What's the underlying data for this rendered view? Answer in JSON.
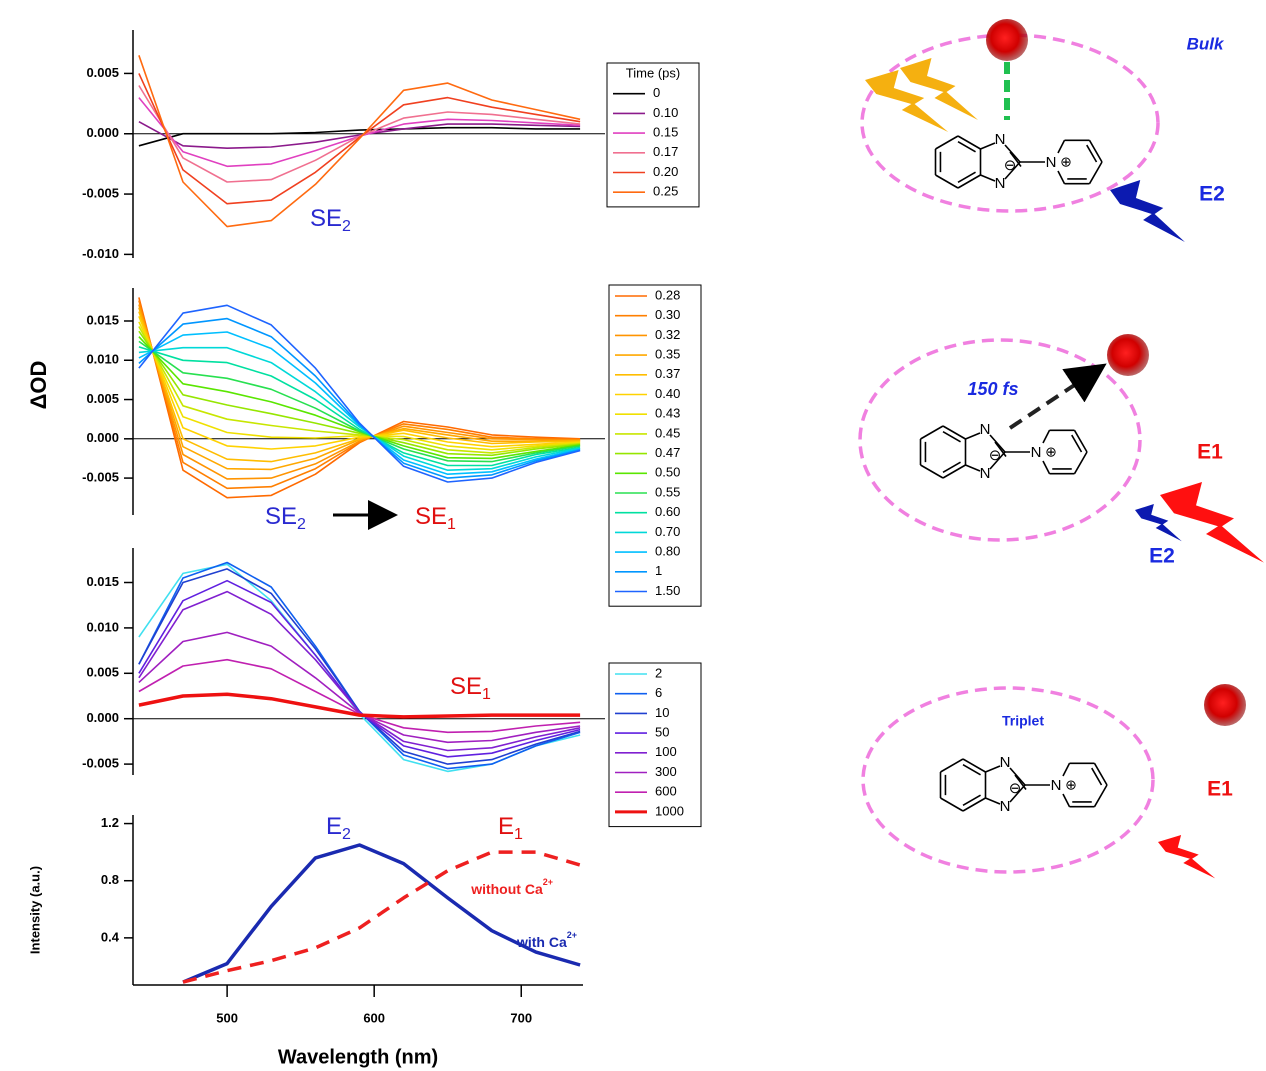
{
  "chart_data": [
    {
      "type": "line",
      "xlim": [
        436,
        742
      ],
      "ylim": [
        -0.0103,
        0.0086
      ],
      "yticks": [
        0.005,
        {
          "value": 0,
          "label": "0.000"
        },
        -0.005,
        {
          "value": -0.01,
          "label": "-0.010"
        }
      ],
      "zero_line": true,
      "legend": true,
      "legend_title": "Time (ps)",
      "x": [
        440,
        470,
        500,
        530,
        560,
        590,
        620,
        650,
        680,
        710,
        740
      ],
      "series": [
        {
          "name": "0",
          "color": "#000000",
          "values": [
            -0.001,
            0,
            0,
            0,
            0.0001,
            0.0003,
            0.0004,
            0.0005,
            0.0005,
            0.0004,
            0.0004
          ]
        },
        {
          "name": "0.10",
          "color": "#8b1a8b",
          "values": [
            0.001,
            -0.001,
            -0.0012,
            -0.0011,
            -0.0007,
            -0.0001,
            0.0004,
            0.0008,
            0.0008,
            0.0007,
            0.0006
          ]
        },
        {
          "name": "0.15",
          "color": "#e040c0",
          "values": [
            0.003,
            -0.0015,
            -0.0027,
            -0.0025,
            -0.0014,
            -0.0002,
            0.0008,
            0.0012,
            0.0011,
            0.0009,
            0.0007
          ]
        },
        {
          "name": "0.17",
          "color": "#f07090",
          "values": [
            0.004,
            -0.002,
            -0.004,
            -0.0038,
            -0.0022,
            -0.0002,
            0.0013,
            0.0018,
            0.0016,
            0.0012,
            0.0008
          ]
        },
        {
          "name": "0.20",
          "color": "#f04020",
          "values": [
            0.005,
            -0.003,
            -0.0058,
            -0.0055,
            -0.0032,
            -0.0003,
            0.0024,
            0.003,
            0.0022,
            0.0016,
            0.001
          ]
        },
        {
          "name": "0.25",
          "color": "#ff6a10",
          "values": [
            0.0065,
            -0.004,
            -0.0077,
            -0.0072,
            -0.0042,
            -0.0004,
            0.0036,
            0.0042,
            0.0028,
            0.002,
            0.0012
          ]
        }
      ],
      "annotations": [
        {
          "text": "SE",
          "sub": "2",
          "color": "#2a2ad0"
        }
      ]
    },
    {
      "type": "line",
      "xlim": [
        436,
        742
      ],
      "ylim": [
        -0.0097,
        0.0192
      ],
      "ylabel": "ΔOD",
      "yticks": [
        0.015,
        {
          "value": 0.01,
          "label": "0.010"
        },
        0.005,
        {
          "value": 0,
          "label": "0.000"
        },
        -0.005
      ],
      "zero_line": true,
      "legend": true,
      "x": [
        440,
        470,
        500,
        530,
        560,
        590,
        620,
        650,
        680,
        710,
        740
      ],
      "series": [
        {
          "name": "0.28",
          "color": "#ff6a00",
          "values": [
            0.018,
            -0.004,
            -0.0075,
            -0.0072,
            -0.0045,
            -0.0005,
            0.0022,
            0.0015,
            0.0005,
            0.0002,
            0
          ]
        },
        {
          "name": "0.30",
          "color": "#ff7f00",
          "values": [
            0.0176,
            -0.003,
            -0.0063,
            -0.0061,
            -0.0038,
            -0.0004,
            0.0019,
            0.0012,
            0.0002,
            0,
            -0.0001
          ]
        },
        {
          "name": "0.32",
          "color": "#ff9400",
          "values": [
            0.0171,
            -0.002,
            -0.0051,
            -0.005,
            -0.0032,
            -0.0003,
            0.0016,
            0.0008,
            0,
            -0.0001,
            -0.0002
          ]
        },
        {
          "name": "0.35",
          "color": "#ffa800",
          "values": [
            0.0167,
            -0.001,
            -0.0038,
            -0.0039,
            -0.0025,
            -0.0001,
            0.0013,
            0.0005,
            -0.0003,
            -0.0003,
            -0.0002
          ]
        },
        {
          "name": "0.37",
          "color": "#ffbd00",
          "values": [
            0.0162,
            0,
            -0.0026,
            -0.0029,
            -0.0018,
            0,
            0.0011,
            0.0001,
            -0.0006,
            -0.0004,
            -0.0003
          ]
        },
        {
          "name": "0.40",
          "color": "#ffd200",
          "values": [
            0.0156,
            0.0014,
            -0.0009,
            -0.0013,
            -0.0009,
            0.0002,
            0.0007,
            -0.0004,
            -0.001,
            -0.0007,
            -0.0004
          ]
        },
        {
          "name": "0.43",
          "color": "#f0e000",
          "values": [
            0.0149,
            0.0028,
            0.0008,
            0.0002,
            0.0001,
            0.0004,
            0.0003,
            -0.0009,
            -0.0014,
            -0.0009,
            -0.0005
          ]
        },
        {
          "name": "0.45",
          "color": "#c8e600",
          "values": [
            0.0143,
            0.0042,
            0.0025,
            0.0017,
            0.001,
            0.0005,
            -0.0001,
            -0.0014,
            -0.0018,
            -0.0011,
            -0.0006
          ]
        },
        {
          "name": "0.47",
          "color": "#96e600",
          "values": [
            0.0137,
            0.0056,
            0.0043,
            0.0032,
            0.002,
            0.0007,
            -0.0005,
            -0.0019,
            -0.0021,
            -0.0013,
            -0.0007
          ]
        },
        {
          "name": "0.50",
          "color": "#5ae600",
          "values": [
            0.013,
            0.007,
            0.006,
            0.0047,
            0.003,
            0.0009,
            -0.0009,
            -0.0024,
            -0.0025,
            -0.0016,
            -0.0008
          ]
        },
        {
          "name": "0.55",
          "color": "#28e050",
          "values": [
            0.0124,
            0.0084,
            0.0077,
            0.0063,
            0.0039,
            0.001,
            -0.0013,
            -0.0028,
            -0.0029,
            -0.0018,
            -0.0009
          ]
        },
        {
          "name": "0.60",
          "color": "#00e0a0",
          "values": [
            0.0117,
            0.01,
            0.0097,
            0.008,
            0.005,
            0.0012,
            -0.0018,
            -0.0034,
            -0.0034,
            -0.002,
            -0.0011
          ]
        },
        {
          "name": "0.70",
          "color": "#00d8d8",
          "values": [
            0.011,
            0.0116,
            0.0116,
            0.0097,
            0.006,
            0.0015,
            -0.0022,
            -0.004,
            -0.0038,
            -0.0023,
            -0.0012
          ]
        },
        {
          "name": "0.80",
          "color": "#00bfff",
          "values": [
            0.0103,
            0.0132,
            0.0136,
            0.0115,
            0.0071,
            0.0017,
            -0.0027,
            -0.0045,
            -0.0042,
            -0.0026,
            -0.0013
          ]
        },
        {
          "name": "1",
          "color": "#0096ff",
          "values": [
            0.0096,
            0.0146,
            0.0153,
            0.013,
            0.008,
            0.0018,
            -0.0031,
            -0.005,
            -0.0046,
            -0.0028,
            -0.0014
          ]
        },
        {
          "name": "1.50",
          "color": "#1e64ff",
          "values": [
            0.009,
            0.016,
            0.017,
            0.0145,
            0.009,
            0.002,
            -0.0035,
            -0.0055,
            -0.005,
            -0.003,
            -0.0015
          ]
        }
      ],
      "annotations": [
        {
          "text": "SE",
          "sub": "2",
          "color": "#2a2ad0"
        },
        {
          "text": "SE",
          "sub": "1",
          "color": "#e01010"
        }
      ]
    },
    {
      "type": "line",
      "xlim": [
        436,
        742
      ],
      "ylim": [
        -0.0062,
        0.0188
      ],
      "yticks": [
        0.015,
        {
          "value": 0.01,
          "label": "0.010"
        },
        0.005,
        {
          "value": 0,
          "label": "0.000"
        },
        -0.005
      ],
      "zero_line": true,
      "legend": true,
      "x": [
        440,
        470,
        500,
        530,
        560,
        590,
        620,
        650,
        680,
        710,
        740
      ],
      "series": [
        {
          "name": "2",
          "color": "#40e0f0",
          "values": [
            0.009,
            0.016,
            0.017,
            0.013,
            0.007,
            0.0005,
            -0.0045,
            -0.0058,
            -0.005,
            -0.003,
            -0.0018
          ]
        },
        {
          "name": "6",
          "color": "#1060f0",
          "values": [
            0.006,
            0.0155,
            0.0172,
            0.0145,
            0.008,
            0.0008,
            -0.004,
            -0.0055,
            -0.005,
            -0.003,
            -0.0015
          ]
        },
        {
          "name": "10",
          "color": "#2040d0",
          "values": [
            0.006,
            0.015,
            0.0165,
            0.0138,
            0.0077,
            0.0008,
            -0.0036,
            -0.005,
            -0.0045,
            -0.0028,
            -0.0014
          ]
        },
        {
          "name": "50",
          "color": "#6020e0",
          "values": [
            0.005,
            0.013,
            0.0152,
            0.0128,
            0.007,
            0.0007,
            -0.003,
            -0.0042,
            -0.0038,
            -0.0024,
            -0.0012
          ]
        },
        {
          "name": "100",
          "color": "#8020d0",
          "values": [
            0.0045,
            0.012,
            0.014,
            0.0115,
            0.0065,
            0.0007,
            -0.0025,
            -0.0035,
            -0.0032,
            -0.002,
            -0.001
          ]
        },
        {
          "name": "300",
          "color": "#a020c0",
          "values": [
            0.004,
            0.0085,
            0.0095,
            0.008,
            0.0045,
            0.0006,
            -0.0018,
            -0.0026,
            -0.0024,
            -0.0015,
            -0.0008
          ]
        },
        {
          "name": "600",
          "color": "#c020b0",
          "values": [
            0.003,
            0.0058,
            0.0065,
            0.0055,
            0.003,
            0.0005,
            -0.001,
            -0.0015,
            -0.0014,
            -0.0008,
            -0.0004
          ]
        },
        {
          "name": "1000",
          "color": "#ee1111",
          "width": 3.5,
          "values": [
            0.0015,
            0.0025,
            0.0027,
            0.0022,
            0.0013,
            0.0004,
            0.0002,
            0.0003,
            0.0004,
            0.0004,
            0.0004
          ]
        }
      ],
      "annotations": [
        {
          "text": "SE",
          "sub": "1",
          "color": "#e01010"
        }
      ]
    },
    {
      "type": "line",
      "xlim": [
        436,
        742
      ],
      "ylim": [
        0.07,
        1.26
      ],
      "ylabel": "Intensity (a.u.)",
      "xlabel": "Wavelength (nm)",
      "yticks": [
        1.2,
        0.8,
        0.4
      ],
      "xticks": [
        500,
        600,
        700
      ],
      "x": [
        440,
        470,
        500,
        530,
        560,
        590,
        620,
        650,
        680,
        710,
        740
      ],
      "series": [
        {
          "name": "with Ca",
          "name_sup": "2+",
          "color": "#1a2ab0",
          "width": 3.5,
          "values": [
            null,
            0.09,
            0.22,
            0.62,
            0.96,
            1.05,
            0.92,
            0.68,
            0.45,
            0.3,
            0.21
          ]
        },
        {
          "name": "without Ca",
          "name_sup": "2+",
          "color": "#ee2020",
          "width": 3.5,
          "dash": true,
          "values": [
            null,
            0.09,
            0.17,
            0.24,
            0.33,
            0.47,
            0.68,
            0.87,
            1.0,
            1.0,
            0.91
          ]
        }
      ],
      "annotations": [
        {
          "text": "E",
          "sub": "2",
          "color": "#2a2ad0"
        },
        {
          "text": "E",
          "sub": "1",
          "color": "#e01010"
        }
      ]
    }
  ],
  "diagram": {
    "panels": [
      {
        "label": "Bulk",
        "emission": [
          "E2"
        ]
      },
      {
        "label": "150 fs",
        "emission": [
          "E1",
          "E2"
        ]
      },
      {
        "label": "Triplet",
        "emission": [
          "E1"
        ]
      }
    ],
    "molecule": {
      "atoms": [
        "N",
        "N",
        "N"
      ],
      "charges": [
        "⊖",
        "⊕"
      ]
    }
  }
}
